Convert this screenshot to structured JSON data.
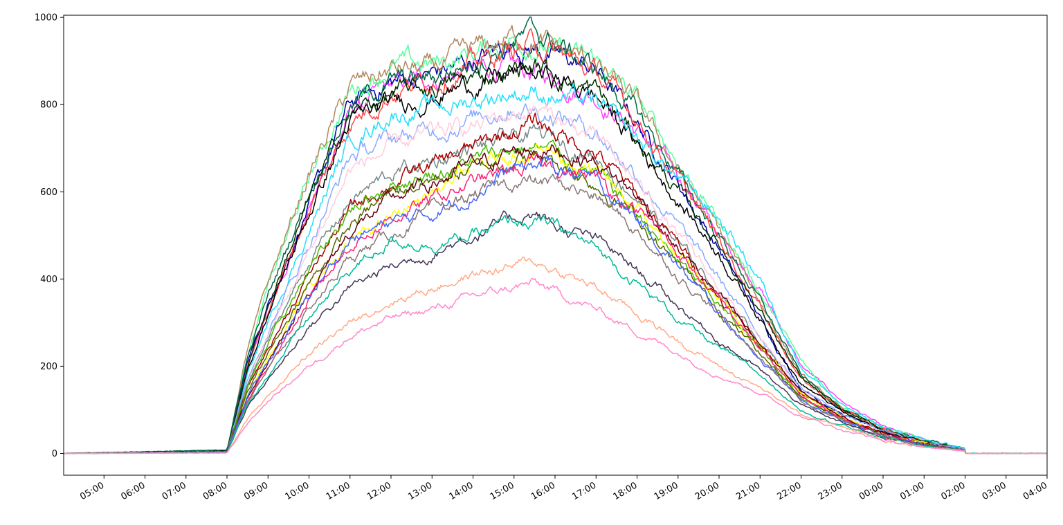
{
  "chart_data": {
    "type": "line",
    "title": "",
    "xlabel": "",
    "ylabel": "",
    "ylim": [
      -50,
      1005
    ],
    "xlim": [
      "04:01",
      "04:00 (+1 day)"
    ],
    "grid": false,
    "legend": "none",
    "x_unit": "time of day (HH:MM)",
    "x_tick_labels": [
      "05:00",
      "06:00",
      "07:00",
      "08:00",
      "09:00",
      "10:00",
      "11:00",
      "12:00",
      "13:00",
      "14:00",
      "15:00",
      "16:00",
      "17:00",
      "18:00",
      "19:00",
      "20:00",
      "21:00",
      "22:00",
      "23:00",
      "00:00",
      "01:00",
      "02:00",
      "03:00",
      "04:00"
    ],
    "y_ticks": [
      0,
      200,
      400,
      600,
      800,
      1000
    ],
    "y_tick_labels": [
      "0",
      "200",
      "400",
      "600",
      "800",
      "1000"
    ],
    "x": [
      "04:00",
      "08:00",
      "08:30",
      "09:00",
      "10:00",
      "11:00",
      "12:00",
      "13:00",
      "14:00",
      "15:00",
      "15:30",
      "16:00",
      "17:00",
      "18:00",
      "19:00",
      "20:00",
      "21:00",
      "22:00",
      "23:00",
      "00:00",
      "01:00",
      "02:00",
      "04:00"
    ],
    "series": [
      {
        "color": "#ff44ff",
        "values": [
          0,
          3,
          200,
          330,
          560,
          780,
          840,
          860,
          880,
          880,
          870,
          860,
          820,
          740,
          640,
          500,
          380,
          200,
          120,
          60,
          30,
          10,
          0
        ]
      },
      {
        "color": "#0000aa",
        "values": [
          0,
          5,
          210,
          340,
          570,
          800,
          850,
          870,
          900,
          940,
          930,
          910,
          880,
          760,
          620,
          470,
          310,
          150,
          90,
          50,
          30,
          12,
          0
        ]
      },
      {
        "color": "#55ff99",
        "values": [
          0,
          6,
          230,
          380,
          630,
          830,
          890,
          890,
          920,
          950,
          940,
          920,
          900,
          810,
          670,
          530,
          370,
          210,
          110,
          60,
          30,
          12,
          0
        ]
      },
      {
        "color": "#b08960",
        "values": [
          0,
          5,
          240,
          390,
          640,
          840,
          880,
          880,
          920,
          955,
          950,
          930,
          890,
          800,
          650,
          510,
          350,
          180,
          100,
          50,
          25,
          10,
          0
        ]
      },
      {
        "color": "#006644",
        "values": [
          0,
          8,
          220,
          360,
          600,
          800,
          850,
          860,
          900,
          950,
          960,
          940,
          880,
          780,
          640,
          500,
          350,
          180,
          100,
          55,
          30,
          12,
          0
        ]
      },
      {
        "color": "#ff4444",
        "values": [
          0,
          4,
          200,
          330,
          560,
          760,
          830,
          860,
          890,
          930,
          940,
          920,
          870,
          770,
          630,
          490,
          340,
          170,
          100,
          55,
          28,
          10,
          0
        ]
      },
      {
        "color": "#003300",
        "values": [
          0,
          5,
          200,
          340,
          580,
          780,
          820,
          840,
          860,
          880,
          890,
          870,
          830,
          720,
          600,
          480,
          330,
          170,
          100,
          55,
          28,
          10,
          0
        ]
      },
      {
        "color": "#000000",
        "values": [
          0,
          5,
          190,
          320,
          550,
          760,
          800,
          820,
          850,
          870,
          870,
          860,
          820,
          710,
          580,
          460,
          310,
          160,
          95,
          50,
          25,
          10,
          0
        ]
      },
      {
        "color": "#22ddff",
        "values": [
          0,
          4,
          180,
          300,
          510,
          720,
          780,
          790,
          810,
          830,
          830,
          820,
          800,
          720,
          630,
          540,
          400,
          200,
          110,
          60,
          30,
          12,
          0
        ]
      },
      {
        "color": "#88aaff",
        "values": [
          0,
          4,
          170,
          280,
          480,
          680,
          720,
          740,
          770,
          800,
          790,
          780,
          740,
          640,
          520,
          400,
          270,
          150,
          90,
          50,
          25,
          10,
          0
        ]
      },
      {
        "color": "#ffccdd",
        "values": [
          0,
          3,
          160,
          270,
          460,
          650,
          700,
          730,
          750,
          780,
          790,
          770,
          720,
          620,
          500,
          380,
          260,
          140,
          85,
          45,
          22,
          8,
          0
        ]
      },
      {
        "color": "#778888",
        "values": [
          0,
          3,
          160,
          260,
          440,
          580,
          640,
          670,
          700,
          720,
          730,
          720,
          680,
          590,
          480,
          370,
          260,
          140,
          85,
          45,
          22,
          8,
          0
        ]
      },
      {
        "color": "#aa0000",
        "values": [
          0,
          3,
          150,
          240,
          410,
          560,
          620,
          660,
          700,
          740,
          760,
          740,
          690,
          590,
          480,
          360,
          250,
          140,
          85,
          45,
          22,
          8,
          0
        ]
      },
      {
        "color": "#44bb00",
        "values": [
          0,
          3,
          150,
          250,
          420,
          560,
          620,
          640,
          670,
          700,
          700,
          690,
          640,
          550,
          440,
          340,
          240,
          130,
          80,
          42,
          20,
          8,
          0
        ]
      },
      {
        "color": "#ffff00",
        "values": [
          0,
          3,
          130,
          220,
          380,
          480,
          540,
          600,
          650,
          690,
          700,
          690,
          640,
          560,
          450,
          350,
          250,
          140,
          85,
          45,
          22,
          8,
          0
        ]
      },
      {
        "color": "#556600",
        "values": [
          0,
          3,
          140,
          230,
          390,
          520,
          600,
          630,
          650,
          680,
          680,
          670,
          620,
          540,
          430,
          330,
          230,
          130,
          80,
          42,
          20,
          8,
          0
        ]
      },
      {
        "color": "#660011",
        "values": [
          0,
          3,
          130,
          210,
          370,
          510,
          580,
          620,
          660,
          690,
          700,
          700,
          670,
          590,
          470,
          360,
          250,
          140,
          85,
          45,
          22,
          8,
          0
        ]
      },
      {
        "color": "#ff2277",
        "values": [
          0,
          2,
          120,
          200,
          350,
          480,
          540,
          580,
          620,
          650,
          660,
          660,
          630,
          560,
          460,
          350,
          240,
          130,
          80,
          42,
          20,
          8,
          0
        ]
      },
      {
        "color": "#4466ff",
        "values": [
          0,
          3,
          130,
          210,
          360,
          490,
          530,
          550,
          600,
          650,
          660,
          660,
          620,
          540,
          430,
          320,
          220,
          120,
          75,
          40,
          20,
          8,
          0
        ]
      },
      {
        "color": "#887777",
        "values": [
          0,
          2,
          120,
          190,
          330,
          450,
          500,
          550,
          590,
          620,
          620,
          620,
          590,
          510,
          410,
          320,
          220,
          120,
          75,
          40,
          20,
          8,
          0
        ]
      },
      {
        "color": "#443355",
        "values": [
          0,
          2,
          110,
          170,
          290,
          380,
          430,
          460,
          500,
          540,
          550,
          520,
          490,
          420,
          340,
          260,
          190,
          110,
          70,
          38,
          18,
          7,
          0
        ]
      },
      {
        "color": "#00bb99",
        "values": [
          0,
          2,
          110,
          180,
          310,
          420,
          490,
          480,
          500,
          530,
          530,
          520,
          470,
          390,
          310,
          240,
          180,
          100,
          65,
          35,
          17,
          7,
          0
        ]
      },
      {
        "color": "#ffaa88",
        "values": [
          0,
          1,
          80,
          130,
          230,
          300,
          350,
          380,
          410,
          430,
          440,
          420,
          380,
          320,
          260,
          200,
          150,
          90,
          60,
          32,
          15,
          6,
          0
        ]
      },
      {
        "color": "#ff88cc",
        "values": [
          0,
          1,
          70,
          120,
          200,
          270,
          310,
          330,
          360,
          380,
          390,
          370,
          330,
          280,
          230,
          180,
          140,
          85,
          55,
          30,
          14,
          5,
          0
        ]
      }
    ]
  },
  "seed": 12345
}
